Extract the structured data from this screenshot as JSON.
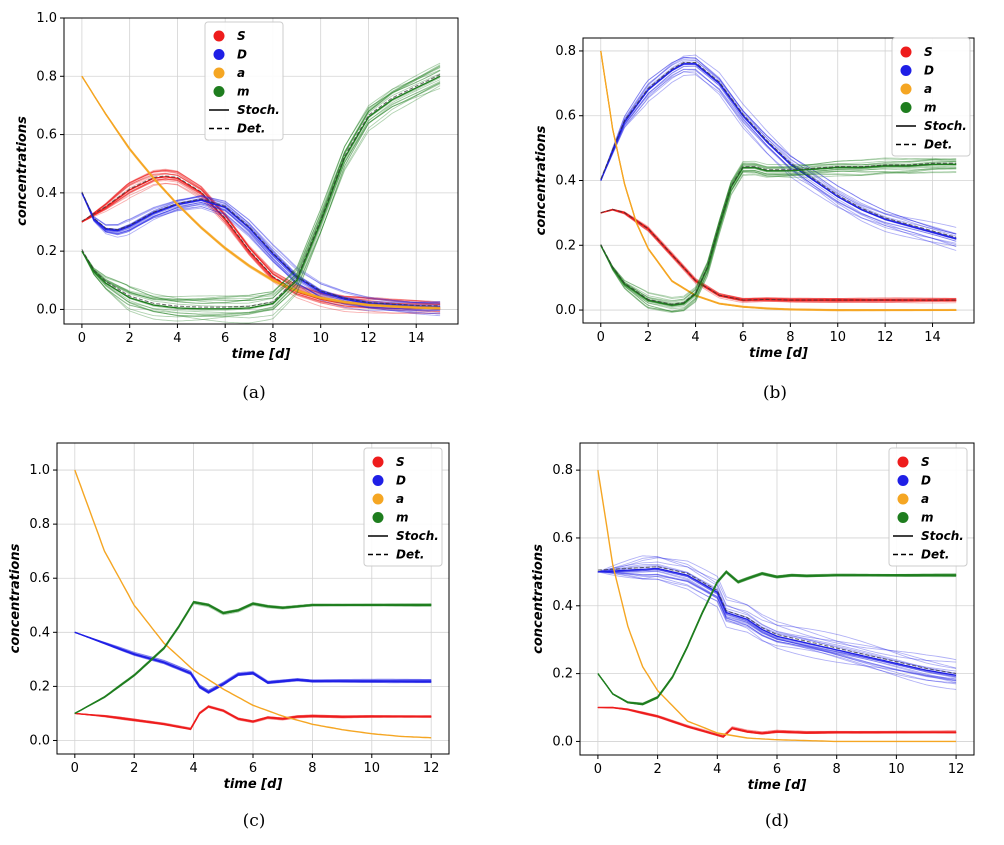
{
  "legend": [
    {
      "label": "S",
      "color": "#ee1c1c",
      "kind": "dot"
    },
    {
      "label": "D",
      "color": "#1f1fe6",
      "kind": "dot"
    },
    {
      "label": "a",
      "color": "#f5a623",
      "kind": "dot"
    },
    {
      "label": "m",
      "color": "#1e7d1e",
      "kind": "dot"
    },
    {
      "label": "Stoch.",
      "color": "#000000",
      "kind": "solid"
    },
    {
      "label": "Det.",
      "color": "#000000",
      "kind": "dashed"
    }
  ],
  "chart_data": [
    {
      "type": "line",
      "caption": "(a)",
      "xlabel": "time [d]",
      "ylabel": "concentrations",
      "xlim": [
        -0.75,
        15.75
      ],
      "ylim": [
        -0.05,
        1.0
      ],
      "xticks": [
        0,
        2,
        4,
        6,
        8,
        10,
        12,
        14
      ],
      "yticks": [
        0.0,
        0.2,
        0.4,
        0.6,
        0.8,
        1.0
      ],
      "legend_position": "top-center",
      "stochastic_runs": 20,
      "series": [
        {
          "name": "S",
          "color": "#ee1c1c",
          "spread": 0.02,
          "x": [
            0,
            1,
            2,
            3,
            3.5,
            4,
            5,
            6,
            7,
            8,
            9,
            10,
            11,
            12,
            13,
            14,
            15
          ],
          "y": [
            0.3,
            0.35,
            0.41,
            0.45,
            0.455,
            0.45,
            0.4,
            0.31,
            0.2,
            0.11,
            0.06,
            0.035,
            0.02,
            0.015,
            0.01,
            0.008,
            0.005
          ]
        },
        {
          "name": "D",
          "color": "#1f1fe6",
          "spread": 0.025,
          "x": [
            0,
            0.5,
            1,
            1.5,
            2,
            3,
            4,
            5,
            6,
            7,
            8,
            9,
            10,
            11,
            12,
            13,
            14,
            15
          ],
          "y": [
            0.4,
            0.31,
            0.275,
            0.27,
            0.285,
            0.33,
            0.36,
            0.375,
            0.35,
            0.28,
            0.19,
            0.11,
            0.06,
            0.035,
            0.02,
            0.015,
            0.01,
            0.008
          ]
        },
        {
          "name": "a",
          "color": "#f5a623",
          "spread": 0.004,
          "x": [
            0,
            1,
            2,
            3,
            4,
            5,
            6,
            7,
            8,
            9,
            10,
            11,
            12,
            13,
            14,
            15
          ],
          "y": [
            0.8,
            0.67,
            0.55,
            0.45,
            0.36,
            0.28,
            0.21,
            0.15,
            0.1,
            0.065,
            0.04,
            0.025,
            0.015,
            0.01,
            0.006,
            0.004
          ]
        },
        {
          "name": "m",
          "color": "#1e7d1e",
          "spread": 0.04,
          "x": [
            0,
            0.5,
            1,
            2,
            3,
            4,
            5,
            6,
            7,
            8,
            9,
            10,
            11,
            12,
            13,
            14,
            15
          ],
          "y": [
            0.2,
            0.13,
            0.09,
            0.04,
            0.015,
            0.005,
            0.002,
            0.002,
            0.005,
            0.02,
            0.1,
            0.3,
            0.52,
            0.66,
            0.72,
            0.76,
            0.8
          ]
        }
      ]
    },
    {
      "type": "line",
      "caption": "(b)",
      "xlabel": "time [d]",
      "ylabel": "concentrations",
      "xlim": [
        -0.75,
        15.75
      ],
      "ylim": [
        -0.04,
        0.84
      ],
      "xticks": [
        0,
        2,
        4,
        6,
        8,
        10,
        12,
        14
      ],
      "yticks": [
        0.0,
        0.2,
        0.4,
        0.6,
        0.8
      ],
      "legend_position": "top-right",
      "stochastic_runs": 20,
      "series": [
        {
          "name": "S",
          "color": "#ee1c1c",
          "spread": 0.006,
          "x": [
            0,
            0.5,
            1,
            2,
            3,
            4,
            5,
            6,
            7,
            8,
            10,
            12,
            14,
            15
          ],
          "y": [
            0.3,
            0.31,
            0.3,
            0.25,
            0.17,
            0.09,
            0.045,
            0.03,
            0.032,
            0.03,
            0.03,
            0.03,
            0.03,
            0.03
          ]
        },
        {
          "name": "D",
          "color": "#1f1fe6",
          "spread": 0.03,
          "x": [
            0,
            1,
            2,
            3,
            3.5,
            4,
            5,
            6,
            7,
            8,
            9,
            10,
            11,
            12,
            13,
            14,
            15
          ],
          "y": [
            0.4,
            0.58,
            0.68,
            0.74,
            0.76,
            0.76,
            0.7,
            0.6,
            0.52,
            0.45,
            0.4,
            0.35,
            0.31,
            0.28,
            0.26,
            0.24,
            0.22
          ]
        },
        {
          "name": "a",
          "color": "#f5a623",
          "spread": 0.002,
          "x": [
            0,
            0.5,
            1,
            1.5,
            2,
            3,
            4,
            5,
            6,
            7,
            8,
            10,
            12,
            14,
            15
          ],
          "y": [
            0.8,
            0.56,
            0.39,
            0.27,
            0.19,
            0.09,
            0.045,
            0.02,
            0.01,
            0.005,
            0.002,
            0.0,
            0.0,
            0.0,
            0.0
          ]
        },
        {
          "name": "m",
          "color": "#1e7d1e",
          "spread": 0.02,
          "x": [
            0,
            0.5,
            1,
            2,
            3,
            3.5,
            4,
            4.5,
            5,
            5.5,
            6,
            6.5,
            7,
            8,
            9,
            10,
            11,
            12,
            13,
            14,
            15
          ],
          "y": [
            0.2,
            0.13,
            0.08,
            0.03,
            0.015,
            0.02,
            0.05,
            0.13,
            0.26,
            0.38,
            0.44,
            0.44,
            0.43,
            0.43,
            0.435,
            0.44,
            0.44,
            0.445,
            0.445,
            0.45,
            0.45
          ]
        }
      ]
    },
    {
      "type": "line",
      "caption": "(c)",
      "xlabel": "time [d]",
      "ylabel": "concentrations",
      "xlim": [
        -0.6,
        12.6
      ],
      "ylim": [
        -0.05,
        1.1
      ],
      "xticks": [
        0,
        2,
        4,
        6,
        8,
        10,
        12
      ],
      "yticks": [
        0.0,
        0.2,
        0.4,
        0.6,
        0.8,
        1.0
      ],
      "legend_position": "top-right",
      "stochastic_runs": 20,
      "series": [
        {
          "name": "S",
          "color": "#ee1c1c",
          "spread": 0.004,
          "x": [
            0,
            1,
            2,
            3,
            3.9,
            4.2,
            4.5,
            5,
            5.5,
            6,
            6.5,
            7,
            7.5,
            8,
            9,
            10,
            11,
            12
          ],
          "y": [
            0.1,
            0.09,
            0.075,
            0.06,
            0.042,
            0.1,
            0.125,
            0.11,
            0.08,
            0.07,
            0.085,
            0.08,
            0.088,
            0.09,
            0.087,
            0.088,
            0.088,
            0.088
          ]
        },
        {
          "name": "D",
          "color": "#1f1fe6",
          "spread": 0.005,
          "x": [
            0,
            1,
            2,
            3,
            3.9,
            4.2,
            4.5,
            5,
            5.5,
            6,
            6.5,
            7,
            7.5,
            8,
            9,
            10,
            11,
            12
          ],
          "y": [
            0.4,
            0.36,
            0.32,
            0.29,
            0.25,
            0.2,
            0.18,
            0.21,
            0.245,
            0.25,
            0.215,
            0.22,
            0.225,
            0.22,
            0.22,
            0.22,
            0.22,
            0.22
          ]
        },
        {
          "name": "a",
          "color": "#f5a623",
          "spread": 0.0,
          "x": [
            0,
            1,
            2,
            3,
            4,
            5,
            6,
            7,
            8,
            9,
            10,
            11,
            12
          ],
          "y": [
            1.0,
            0.7,
            0.5,
            0.36,
            0.26,
            0.19,
            0.13,
            0.09,
            0.06,
            0.04,
            0.025,
            0.015,
            0.01
          ]
        },
        {
          "name": "m",
          "color": "#1e7d1e",
          "spread": 0.004,
          "x": [
            0,
            1,
            2,
            3,
            3.5,
            4,
            4.5,
            5,
            5.5,
            6,
            6.5,
            7,
            7.5,
            8,
            9,
            10,
            11,
            12
          ],
          "y": [
            0.1,
            0.16,
            0.24,
            0.34,
            0.42,
            0.51,
            0.5,
            0.47,
            0.48,
            0.505,
            0.495,
            0.49,
            0.495,
            0.5,
            0.5,
            0.5,
            0.5,
            0.5
          ]
        }
      ]
    },
    {
      "type": "line",
      "caption": "(d)",
      "xlabel": "time [d]",
      "ylabel": "concentrations",
      "xlim": [
        -0.6,
        12.6
      ],
      "ylim": [
        -0.04,
        0.88
      ],
      "xticks": [
        0,
        2,
        4,
        6,
        8,
        10,
        12
      ],
      "yticks": [
        0.0,
        0.2,
        0.4,
        0.6,
        0.8
      ],
      "legend_position": "top-right",
      "stochastic_runs": 20,
      "series": [
        {
          "name": "S",
          "color": "#ee1c1c",
          "spread": 0.003,
          "x": [
            0,
            0.5,
            1,
            2,
            3,
            4,
            4.2,
            4.5,
            5,
            5.5,
            6,
            7,
            8,
            10,
            12
          ],
          "y": [
            0.1,
            0.1,
            0.095,
            0.075,
            0.045,
            0.02,
            0.015,
            0.04,
            0.03,
            0.025,
            0.03,
            0.027,
            0.028,
            0.028,
            0.028
          ]
        },
        {
          "name": "D",
          "color": "#1f1fe6",
          "spread": 0.035,
          "x": [
            0,
            1,
            2,
            3,
            4,
            4.3,
            5,
            5.5,
            6,
            7,
            8,
            9,
            10,
            11,
            12
          ],
          "y": [
            0.5,
            0.505,
            0.51,
            0.49,
            0.44,
            0.38,
            0.36,
            0.33,
            0.31,
            0.29,
            0.27,
            0.25,
            0.23,
            0.21,
            0.195
          ]
        },
        {
          "name": "a",
          "color": "#f5a623",
          "spread": 0.0,
          "x": [
            0,
            0.5,
            1,
            1.5,
            2,
            3,
            4,
            5,
            6,
            8,
            10,
            12
          ],
          "y": [
            0.8,
            0.52,
            0.34,
            0.22,
            0.15,
            0.06,
            0.025,
            0.01,
            0.005,
            0.0,
            0.0,
            0.0
          ]
        },
        {
          "name": "m",
          "color": "#1e7d1e",
          "spread": 0.003,
          "x": [
            0,
            0.5,
            1,
            1.5,
            2,
            2.5,
            3,
            3.5,
            4,
            4.3,
            4.7,
            5,
            5.5,
            6,
            6.5,
            7,
            8,
            10,
            12
          ],
          "y": [
            0.2,
            0.14,
            0.115,
            0.11,
            0.13,
            0.19,
            0.28,
            0.38,
            0.47,
            0.5,
            0.47,
            0.48,
            0.495,
            0.485,
            0.49,
            0.488,
            0.49,
            0.49,
            0.49
          ]
        }
      ]
    }
  ]
}
